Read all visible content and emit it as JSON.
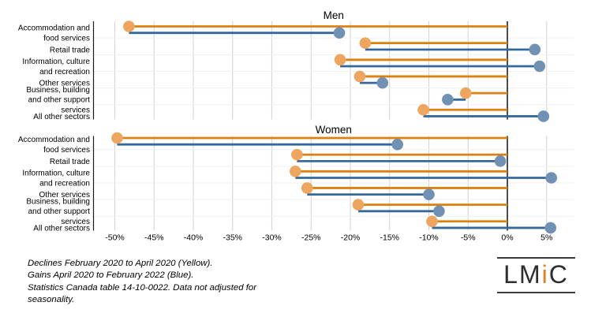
{
  "chart_data": {
    "type": "dumbbell",
    "title": "",
    "x_unit": "percent",
    "xlim": [
      -52.5,
      8.5
    ],
    "grid": true,
    "x_ticks": [
      {
        "value": -50,
        "label": "-50%"
      },
      {
        "value": -45,
        "label": "-45%"
      },
      {
        "value": -40,
        "label": "-40%"
      },
      {
        "value": -35,
        "label": "-35%"
      },
      {
        "value": -30,
        "label": "-30%"
      },
      {
        "value": -25,
        "label": "-25%"
      },
      {
        "value": -20,
        "label": "-20%"
      },
      {
        "value": -15,
        "label": "-15%"
      },
      {
        "value": -10,
        "label": "-10%"
      },
      {
        "value": -5,
        "label": "-5%"
      },
      {
        "value": 0,
        "label": "0%"
      },
      {
        "value": 5,
        "label": "5%"
      }
    ],
    "series_legend": [
      {
        "name": "Declines February 2020 to April 2020",
        "color_name": "yellow",
        "segment": "from 0% to decline_pct"
      },
      {
        "name": "Gains April 2020 to February 2022",
        "color_name": "blue",
        "segment": "from decline_pct to final_pct"
      }
    ],
    "panels": [
      {
        "title": "Men",
        "rows": [
          {
            "category_lines": [
              "Accommodation and",
              "food services"
            ],
            "decline_pct": -48.2,
            "final_pct": -21.4
          },
          {
            "category_lines": [
              "Retail trade"
            ],
            "decline_pct": -18.1,
            "final_pct": 3.5
          },
          {
            "category_lines": [
              "Information, culture",
              "and recreation"
            ],
            "decline_pct": -21.3,
            "final_pct": 4.1
          },
          {
            "category_lines": [
              "Other services"
            ],
            "decline_pct": -18.8,
            "final_pct": -15.9
          },
          {
            "category_lines": [
              "Business, building",
              "and other support",
              "services"
            ],
            "decline_pct": -5.3,
            "final_pct": -7.6
          },
          {
            "category_lines": [
              "All other sectors"
            ],
            "decline_pct": -10.7,
            "final_pct": 4.6
          }
        ]
      },
      {
        "title": "Women",
        "rows": [
          {
            "category_lines": [
              "Accommodation and",
              "food services"
            ],
            "decline_pct": -49.7,
            "final_pct": -14.0
          },
          {
            "category_lines": [
              "Retail trade"
            ],
            "decline_pct": -26.8,
            "final_pct": -0.9
          },
          {
            "category_lines": [
              "Information, culture",
              "and recreation"
            ],
            "decline_pct": -27.0,
            "final_pct": 5.6
          },
          {
            "category_lines": [
              "Other services"
            ],
            "decline_pct": -25.5,
            "final_pct": -10.0
          },
          {
            "category_lines": [
              "Business, building",
              "and other support",
              "services"
            ],
            "decline_pct": -19.0,
            "final_pct": -8.7
          },
          {
            "category_lines": [
              "All other sectors"
            ],
            "decline_pct": -9.6,
            "final_pct": 5.5
          }
        ]
      }
    ],
    "colors": {
      "decline_line": "#DD800F",
      "decline_dot": "#EDA55F",
      "gain_line": "#36689B",
      "gain_dot": "#7191B4",
      "grid_vertical": "#D5D5D5",
      "grid_horizontal": "#F0F0F0",
      "zero_line": "#000000",
      "axis_line": "#1A1A1A",
      "text": "#000000"
    }
  },
  "footnote": {
    "lines": [
      "Declines February 2020 to April 2020 (Yellow).",
      "Gains April 2020 to February 2022 (Blue).",
      "Statistics Canada table 14-10-0022. Data not adjusted for",
      "seasonality."
    ]
  },
  "logo": {
    "segments": [
      {
        "text": "LM",
        "color": "#2E2E2E"
      },
      {
        "text": "i",
        "color": "#E08020"
      },
      {
        "text": "C",
        "color": "#2E2E2E"
      }
    ]
  }
}
